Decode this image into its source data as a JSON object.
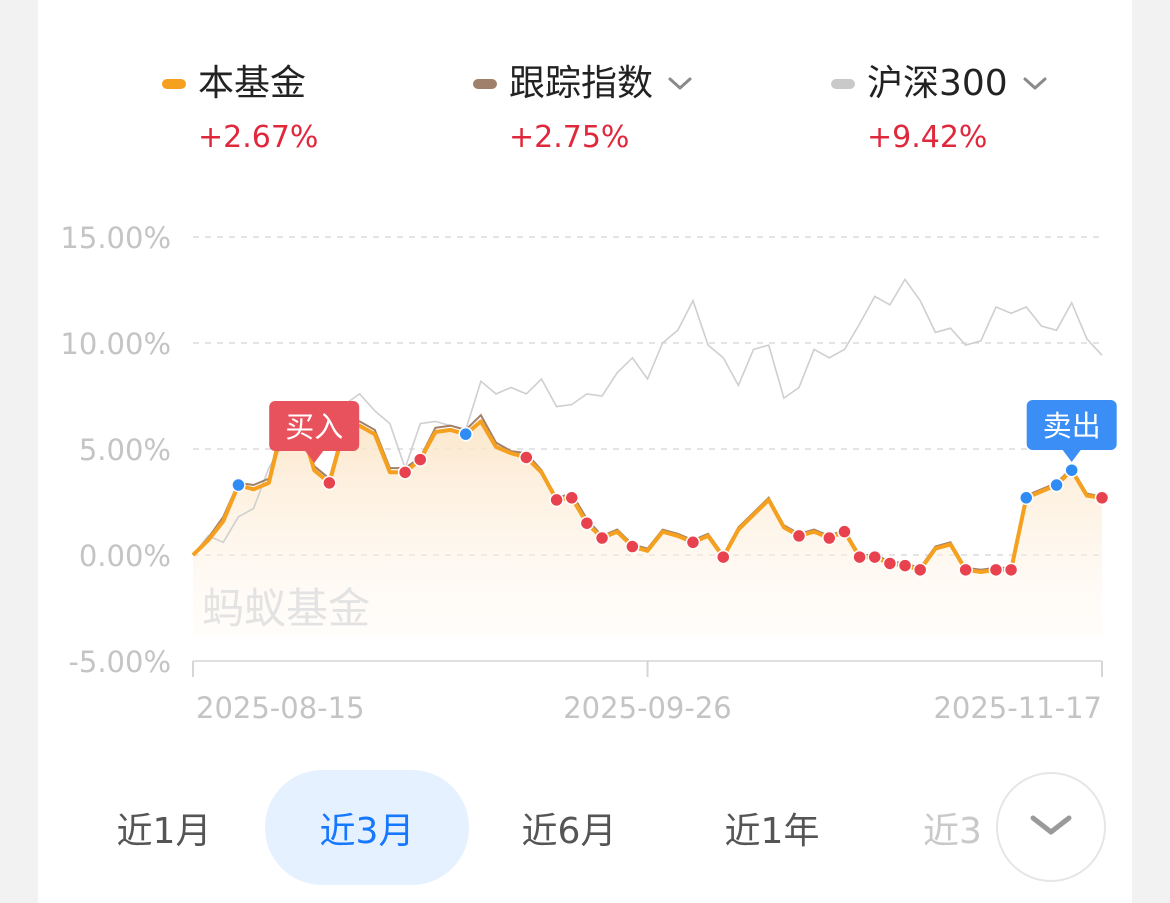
{
  "legend": [
    {
      "name": "本基金",
      "change": "+2.67%",
      "color": "#f5a01e",
      "dropdown": false
    },
    {
      "name": "跟踪指数",
      "change": "+2.75%",
      "color": "#a0806a",
      "dropdown": true
    },
    {
      "name": "沪深300",
      "change": "+9.42%",
      "color": "#c9c9c9",
      "dropdown": true
    }
  ],
  "watermark": "蚂蚁基金",
  "tabs": [
    {
      "label": "近1月",
      "active": false
    },
    {
      "label": "近3月",
      "active": true
    },
    {
      "label": "近6月",
      "active": false
    },
    {
      "label": "近1年",
      "active": false
    },
    {
      "label": "近3",
      "active": false
    }
  ],
  "expand_icon": "chevron-down-icon",
  "colors": {
    "accent": "#1677ff",
    "up": "#e0283c",
    "fund": "#f5a01e",
    "index": "#a0806a",
    "csi300": "#c9c9c9",
    "buy_marker": "#e8424f",
    "sell_marker": "#2f8cf5"
  },
  "chart_data": {
    "type": "line",
    "ylim": [
      -5,
      15
    ],
    "yticks": [
      15,
      10,
      5,
      0,
      -5
    ],
    "ytick_labels": [
      "15.00%",
      "10.00%",
      "5.00%",
      "0.00%",
      "-5.00%"
    ],
    "x_tick_labels": [
      "2025-08-15",
      "2025-09-26",
      "2025-11-17"
    ],
    "x_tick_index": [
      0,
      30,
      60
    ],
    "grid": true,
    "series": [
      {
        "name": "本基金",
        "values": [
          0,
          0.7,
          1.6,
          3.3,
          3.1,
          3.4,
          6.3,
          6.4,
          4.0,
          3.4,
          6.0,
          6.1,
          5.7,
          3.9,
          3.9,
          4.5,
          5.8,
          5.9,
          5.7,
          6.3,
          5.1,
          4.8,
          4.6,
          3.9,
          2.6,
          2.7,
          1.5,
          0.8,
          1.1,
          0.4,
          0.2,
          1.1,
          0.9,
          0.6,
          0.9,
          -0.1,
          1.2,
          1.9,
          2.6,
          1.3,
          0.9,
          1.1,
          0.8,
          1.1,
          -0.1,
          -0.1,
          -0.4,
          -0.5,
          -0.7,
          0.3,
          0.5,
          -0.7,
          -0.8,
          -0.7,
          -0.7,
          2.7,
          3.0,
          3.3,
          4.0,
          2.8,
          2.7
        ]
      },
      {
        "name": "跟踪指数",
        "values": [
          0,
          0.8,
          1.8,
          3.4,
          3.3,
          3.6,
          6.6,
          6.7,
          4.2,
          3.6,
          6.2,
          6.3,
          5.9,
          4.1,
          4.1,
          4.6,
          6.0,
          6.1,
          5.9,
          6.6,
          5.3,
          4.9,
          4.8,
          4.0,
          2.7,
          2.9,
          1.7,
          0.9,
          1.2,
          0.5,
          0.3,
          1.2,
          1.0,
          0.7,
          1.0,
          0.0,
          1.3,
          2.0,
          2.7,
          1.4,
          1.0,
          1.2,
          0.9,
          1.2,
          0.0,
          0.0,
          -0.3,
          -0.4,
          -0.6,
          0.4,
          0.6,
          -0.6,
          -0.7,
          -0.6,
          -0.6,
          2.8,
          3.1,
          3.4,
          4.1,
          2.9,
          2.75
        ]
      },
      {
        "name": "沪深300",
        "values": [
          0,
          0.9,
          0.6,
          1.8,
          2.2,
          4.1,
          5.3,
          6.9,
          6.2,
          6.6,
          7.1,
          7.6,
          6.8,
          6.2,
          4.1,
          6.2,
          6.3,
          6.1,
          5.9,
          8.2,
          7.6,
          7.9,
          7.6,
          8.3,
          7.0,
          7.1,
          7.6,
          7.5,
          8.6,
          9.3,
          8.3,
          10.0,
          10.6,
          12.0,
          9.9,
          9.3,
          8.0,
          9.7,
          9.9,
          7.4,
          7.9,
          9.7,
          9.3,
          9.7,
          10.9,
          12.2,
          11.8,
          13.0,
          12.0,
          10.5,
          10.7,
          9.9,
          10.1,
          11.7,
          11.4,
          11.7,
          10.8,
          10.6,
          11.9,
          10.2,
          9.42
        ]
      }
    ],
    "buy_points": [
      9,
      10,
      14,
      15,
      22,
      24,
      25,
      26,
      27,
      29,
      33,
      35,
      40,
      42,
      43,
      44,
      45,
      46,
      47,
      48,
      51,
      53,
      54,
      60
    ],
    "sell_points": [
      3,
      18,
      55,
      57,
      58
    ],
    "annotations": [
      {
        "text": "买入",
        "index": 8,
        "kind": "buy"
      },
      {
        "text": "卖出",
        "index": 58,
        "kind": "sell"
      }
    ]
  }
}
